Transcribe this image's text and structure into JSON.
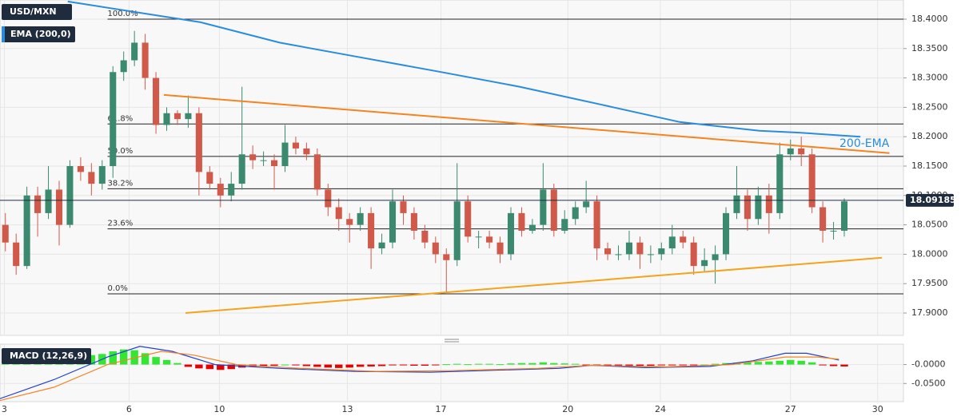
{
  "chart_data": [
    {
      "type": "candlestick",
      "title": "USD/MXN",
      "indicator": "EMA (200,0)",
      "annotation": "200-EMA",
      "bull_color": "#3b8a6f",
      "bear_color": "#d1594a",
      "xlim": [
        0,
        84
      ],
      "xticks": [
        {
          "value": 0.4,
          "label": "3"
        },
        {
          "value": 12,
          "label": "6"
        },
        {
          "value": 20.4,
          "label": "10"
        },
        {
          "value": 32.3,
          "label": "13"
        },
        {
          "value": 41,
          "label": "17"
        },
        {
          "value": 52.8,
          "label": "20"
        },
        {
          "value": 61.4,
          "label": "24"
        },
        {
          "value": 73.5,
          "label": "27"
        },
        {
          "value": 81.6,
          "label": "30"
        }
      ],
      "ylim": [
        17.862,
        18.4326
      ],
      "yticks": [
        {
          "value": 18.4,
          "label": "18.4000"
        },
        {
          "value": 18.35,
          "label": "18.3500"
        },
        {
          "value": 18.3,
          "label": "18.3000"
        },
        {
          "value": 18.25,
          "label": "18.2500"
        },
        {
          "value": 18.2,
          "label": "18.2000"
        },
        {
          "value": 18.15,
          "label": "18.1500"
        },
        {
          "value": 18.1,
          "label": "18.1000"
        },
        {
          "value": 18.05,
          "label": "18.0500"
        },
        {
          "value": 18.0,
          "label": "18.0000"
        },
        {
          "value": 17.95,
          "label": "17.9500"
        },
        {
          "value": 17.9,
          "label": "17.9000"
        }
      ],
      "grid": true,
      "open": [
        18.05,
        18.02,
        17.98,
        18.1,
        18.07,
        18.11,
        18.05,
        18.15,
        18.14,
        18.12,
        18.15,
        18.31,
        18.33,
        18.36,
        18.3,
        18.22,
        18.24,
        18.23,
        18.24,
        18.14,
        18.12,
        18.1,
        18.12,
        18.17,
        18.16,
        18.16,
        18.15,
        18.19,
        18.18,
        18.17,
        18.11,
        18.08,
        18.06,
        18.05,
        18.07,
        18.01,
        18.02,
        18.09,
        18.07,
        18.04,
        18.02,
        18.0,
        17.99,
        18.09,
        18.03,
        18.03,
        18.02,
        18.0,
        18.07,
        18.04,
        18.05,
        18.11,
        18.04,
        18.06,
        18.08,
        18.09,
        18.01,
        18.0,
        18.0,
        18.02,
        18.0,
        18.0,
        18.01,
        18.03,
        18.02,
        17.98,
        17.99,
        18.0,
        18.07,
        18.1,
        18.06,
        18.1,
        18.07,
        18.17,
        18.18,
        18.17,
        18.08,
        18.04,
        18.04
      ],
      "high": [
        18.07,
        18.035,
        18.115,
        18.115,
        18.15,
        18.125,
        18.16,
        18.165,
        18.155,
        18.16,
        18.32,
        18.345,
        18.38,
        18.375,
        18.31,
        18.25,
        18.245,
        18.27,
        18.25,
        18.15,
        18.13,
        18.14,
        18.285,
        18.185,
        18.175,
        18.17,
        18.22,
        18.2,
        18.19,
        18.18,
        18.12,
        18.095,
        18.07,
        18.08,
        18.08,
        18.035,
        18.11,
        18.1,
        18.08,
        18.05,
        18.03,
        18.01,
        18.155,
        18.1,
        18.04,
        18.04,
        18.03,
        18.08,
        18.08,
        18.06,
        18.155,
        18.12,
        18.075,
        18.09,
        18.125,
        18.1,
        18.02,
        18.015,
        18.04,
        18.03,
        18.015,
        18.02,
        18.05,
        18.04,
        18.03,
        18.01,
        18.015,
        18.08,
        18.15,
        18.11,
        18.115,
        18.12,
        18.19,
        18.195,
        18.2,
        18.18,
        18.09,
        18.055,
        18.095
      ],
      "low": [
        18.005,
        17.965,
        17.975,
        18.03,
        18.06,
        18.015,
        18.045,
        18.125,
        18.1,
        18.11,
        18.13,
        18.295,
        18.32,
        18.28,
        18.205,
        18.21,
        18.22,
        18.215,
        18.1,
        18.11,
        18.08,
        18.09,
        18.11,
        18.145,
        18.15,
        18.11,
        18.14,
        18.17,
        18.16,
        18.1,
        18.065,
        18.04,
        18.02,
        18.04,
        17.975,
        18.0,
        18.01,
        18.05,
        18.025,
        18.01,
        17.985,
        17.935,
        17.98,
        18.02,
        18.01,
        18.01,
        17.985,
        17.99,
        18.03,
        18.035,
        18.04,
        18.03,
        18.035,
        18.05,
        18.07,
        17.99,
        17.99,
        17.99,
        17.99,
        17.975,
        17.985,
        17.99,
        18.0,
        18.01,
        17.965,
        17.97,
        17.95,
        17.99,
        18.06,
        18.04,
        18.05,
        18.035,
        18.06,
        18.16,
        18.15,
        18.07,
        18.02,
        18.025,
        18.03
      ],
      "close": [
        18.02,
        17.98,
        18.1,
        18.07,
        18.11,
        18.05,
        18.15,
        18.14,
        18.12,
        18.15,
        18.31,
        18.33,
        18.36,
        18.3,
        18.22,
        18.24,
        18.23,
        18.24,
        18.14,
        18.12,
        18.1,
        18.12,
        18.17,
        18.16,
        18.16,
        18.15,
        18.19,
        18.18,
        18.17,
        18.11,
        18.08,
        18.06,
        18.05,
        18.07,
        18.01,
        18.02,
        18.09,
        18.07,
        18.04,
        18.02,
        18.0,
        17.99,
        18.09,
        18.03,
        18.03,
        18.02,
        18.0,
        18.07,
        18.04,
        18.05,
        18.11,
        18.04,
        18.06,
        18.08,
        18.09,
        18.01,
        18.0,
        18.0,
        18.02,
        18.0,
        18.0,
        18.01,
        18.03,
        18.02,
        17.98,
        17.99,
        18.0,
        18.07,
        18.1,
        18.06,
        18.1,
        18.07,
        18.17,
        18.18,
        18.17,
        18.08,
        18.04,
        18.04,
        18.09
      ],
      "lines": [
        {
          "name": "EMA (200,0)",
          "color": "#2a8cde",
          "x": [
            6.3,
            18.6,
            26,
            33.5,
            41,
            48.3,
            55.8,
            63.2,
            70.6,
            74.3,
            80
          ],
          "values": [
            18.43,
            18.395,
            18.36,
            18.335,
            18.31,
            18.285,
            18.255,
            18.225,
            18.21,
            18.207,
            18.2
          ]
        },
        {
          "color": "#f5841f",
          "x": [
            15.24,
            82.7
          ],
          "values": [
            18.271,
            18.172
          ]
        },
        {
          "color": "#f5a31a",
          "x": [
            17.25,
            82.0
          ],
          "values": [
            17.9,
            17.994
          ]
        }
      ],
      "fib_start": 10,
      "fib_levels": [
        {
          "value": 18.4,
          "label": "100.0%"
        },
        {
          "value": 18.2216,
          "label": "61.8%"
        },
        {
          "value": 18.1665,
          "label": "50.0%"
        },
        {
          "value": 18.1114,
          "label": "38.2%"
        },
        {
          "value": 18.0432,
          "label": "23.6%"
        },
        {
          "value": 17.9326,
          "label": "0.0%"
        }
      ],
      "last_price": {
        "value": 18.09185,
        "label": "18.09185"
      }
    },
    {
      "type": "macd",
      "title": "MACD (12,26,9)",
      "ylim": [
        -0.098,
        0.054
      ],
      "yticks": [
        {
          "value": 0,
          "label": "-0.0000"
        },
        {
          "value": -0.05,
          "label": "-0.0500"
        }
      ],
      "pos_color": "#33e633",
      "neg_color": "#e60000",
      "histogram": [
        0.005,
        0.008,
        0.01,
        0.012,
        0.015,
        0.018,
        0.02,
        0.022,
        0.025,
        0.028,
        0.035,
        0.04,
        0.038,
        0.03,
        0.02,
        0.012,
        0.004,
        -0.006,
        -0.01,
        -0.012,
        -0.014,
        -0.012,
        -0.008,
        -0.006,
        -0.004,
        -0.003,
        0,
        -0.002,
        -0.004,
        -0.006,
        -0.008,
        -0.009,
        -0.008,
        -0.006,
        -0.005,
        -0.004,
        -0.002,
        -0.002,
        -0.003,
        -0.003,
        -0.002,
        0.001,
        0.002,
        0.001,
        0.002,
        0.002,
        0.001,
        0.003,
        0.004,
        0.004,
        0.006,
        0.004,
        0.003,
        0.002,
        -0.001,
        -0.003,
        -0.004,
        -0.004,
        -0.004,
        -0.003,
        -0.003,
        -0.002,
        -0.002,
        -0.001,
        -0.001,
        0,
        0.002,
        0.004,
        0.005,
        0.006,
        0.007,
        0.008,
        0.01,
        0.012,
        0.01,
        0.006,
        -0.002,
        -0.004,
        -0.005
      ],
      "lines": [
        {
          "color": "#1f3fd6",
          "x": [
            0,
            5,
            10,
            13,
            16,
            20,
            26,
            33,
            40,
            46,
            52,
            55,
            60,
            66,
            70,
            73,
            75,
            78
          ],
          "values": [
            -0.09,
            -0.04,
            0.02,
            0.048,
            0.035,
            0,
            -0.01,
            -0.018,
            -0.02,
            -0.015,
            -0.01,
            -0.002,
            -0.008,
            -0.005,
            0.01,
            0.03,
            0.03,
            0.012
          ]
        },
        {
          "color": "#f5841f",
          "x": [
            0,
            5,
            10,
            15,
            18,
            22,
            28,
            35,
            42,
            50,
            55,
            62,
            68,
            73,
            76,
            78
          ],
          "values": [
            -0.095,
            -0.06,
            0,
            0.035,
            0.025,
            0,
            -0.01,
            -0.018,
            -0.016,
            -0.01,
            -0.002,
            -0.006,
            0,
            0.02,
            0.02,
            0.014
          ]
        }
      ]
    }
  ]
}
